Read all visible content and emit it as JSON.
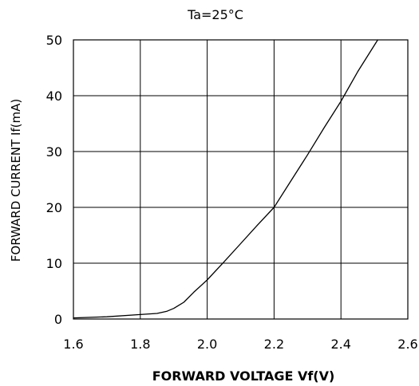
{
  "chart_data": {
    "type": "line",
    "title": "Ta=25°C",
    "xlabel": "FORWARD VOLTAGE Vf(V)",
    "ylabel": "FORWARD CURRENT If(mA)",
    "xlim": [
      1.6,
      2.6
    ],
    "ylim": [
      0,
      50
    ],
    "xticks": [
      "1.6",
      "1.8",
      "2.0",
      "2.2",
      "2.4",
      "2.6"
    ],
    "yticks": [
      "0",
      "10",
      "20",
      "30",
      "40",
      "50"
    ],
    "grid": true,
    "legend": "none",
    "series": [
      {
        "x": [
          1.6,
          1.7,
          1.8,
          1.85,
          1.88,
          1.9,
          1.93,
          1.96,
          2.0,
          2.05,
          2.1,
          2.15,
          2.2,
          2.25,
          2.3,
          2.35,
          2.4,
          2.45,
          2.51
        ],
        "y": [
          0.2,
          0.4,
          0.8,
          1.0,
          1.4,
          1.9,
          3.0,
          4.8,
          7.0,
          10.2,
          13.5,
          16.8,
          20.0,
          24.7,
          29.4,
          34.3,
          39.0,
          44.3,
          50.0
        ],
        "color": "#000000"
      }
    ]
  }
}
